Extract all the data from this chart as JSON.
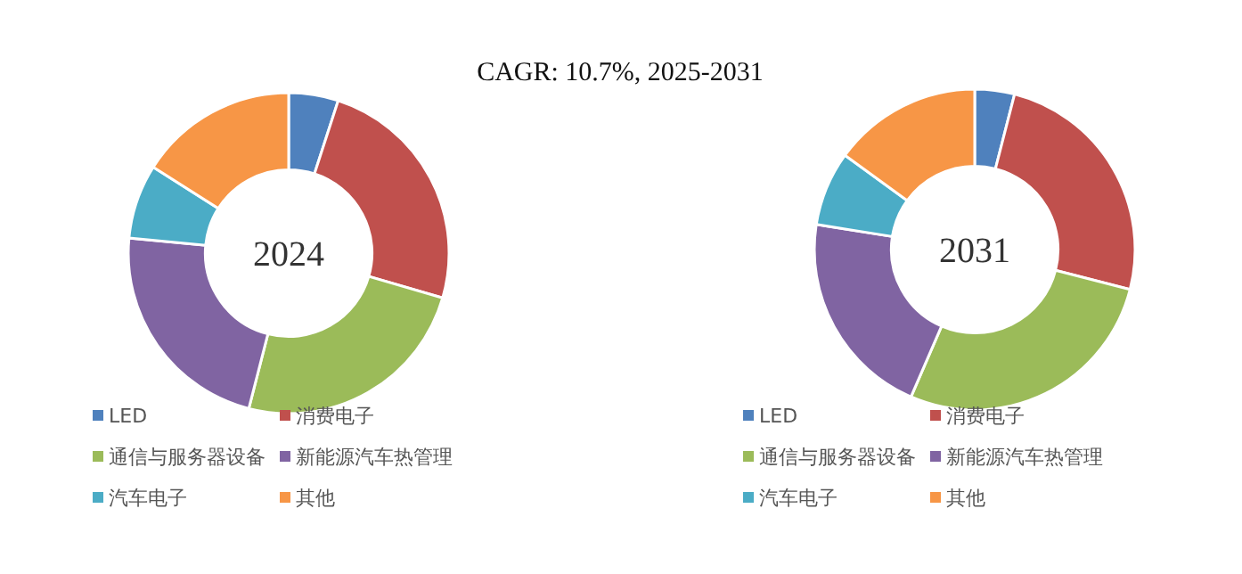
{
  "chart_data": [
    {
      "type": "donut",
      "title": "2024",
      "annotations": [
        "CAGR:  10.7%, 2025-2031"
      ],
      "categories": [
        "LED",
        "消费电子",
        "通信与服务器设备",
        "新能源汽车热管理",
        "汽车电子",
        "其他"
      ],
      "values": [
        5,
        24.5,
        24.5,
        22.5,
        7.5,
        16
      ],
      "colors": [
        "#4f81bd",
        "#c0504d",
        "#9bbb59",
        "#8064a2",
        "#4bacc6",
        "#f79646"
      ],
      "legend": "bottom"
    },
    {
      "type": "donut",
      "title": "2031",
      "categories": [
        "LED",
        "消费电子",
        "通信与服务器设备",
        "新能源汽车热管理",
        "汽车电子",
        "其他"
      ],
      "values": [
        4,
        25,
        27.5,
        21,
        7.5,
        15
      ],
      "colors": [
        "#4f81bd",
        "#c0504d",
        "#9bbb59",
        "#8064a2",
        "#4bacc6",
        "#f79646"
      ],
      "legend": "bottom"
    }
  ]
}
